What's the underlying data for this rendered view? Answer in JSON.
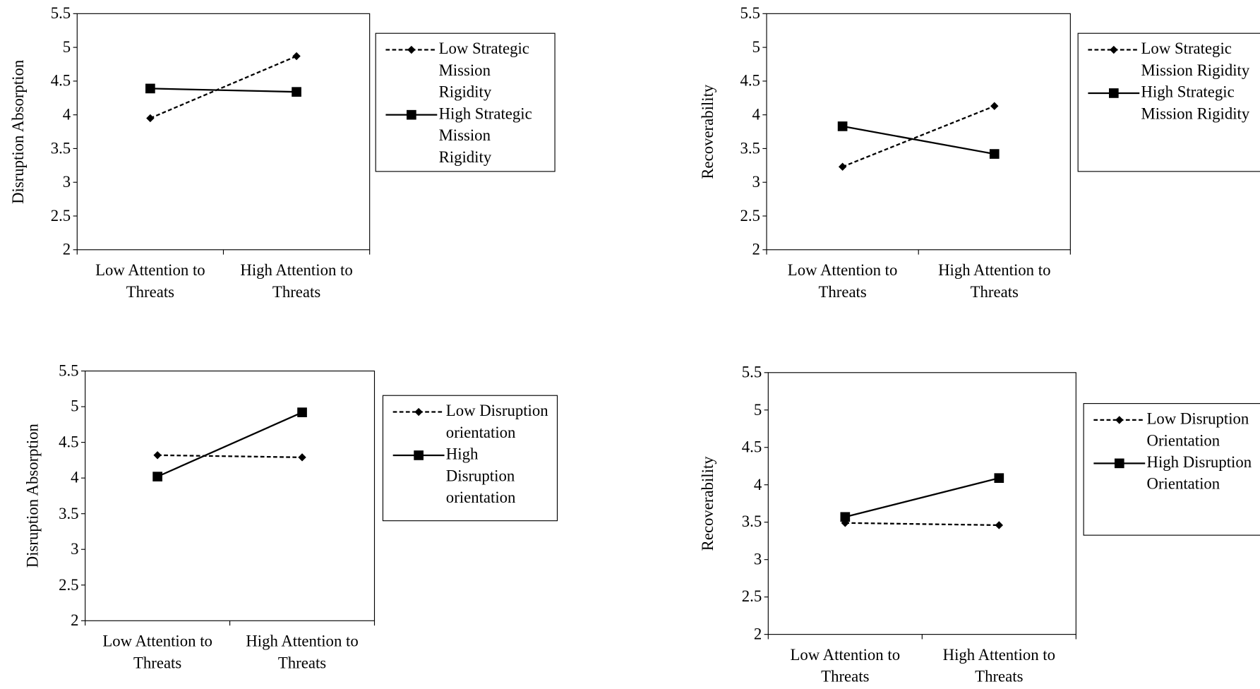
{
  "chart_data": [
    {
      "type": "line",
      "y_label": "Disruption Absorption",
      "categories": [
        "Low Attention to Threats",
        "High Attention to Threats"
      ],
      "ylim": [
        2,
        5.5
      ],
      "yticks": [
        2,
        2.5,
        3,
        3.5,
        4,
        4.5,
        5,
        5.5
      ],
      "series": [
        {
          "name": "Low Strategic Mission Rigidity",
          "color": "#000000",
          "dashed": true,
          "marker": "diamond",
          "values": [
            3.95,
            4.87
          ]
        },
        {
          "name": "High Strategic Mission Rigidity",
          "color": "#000000",
          "dashed": false,
          "marker": "square",
          "values": [
            4.39,
            4.34
          ]
        }
      ]
    },
    {
      "type": "line",
      "y_label": "Recoverability",
      "categories": [
        "Low Attention to Threats",
        "High Attention to Threats"
      ],
      "ylim": [
        2,
        5.5
      ],
      "yticks": [
        2,
        2.5,
        3,
        3.5,
        4,
        4.5,
        5,
        5.5
      ],
      "series": [
        {
          "name": "Low Strategic Mission Rigidity",
          "color": "#000000",
          "dashed": true,
          "marker": "diamond",
          "values": [
            3.23,
            4.13
          ]
        },
        {
          "name": "High Strategic Mission Rigidity",
          "color": "#000000",
          "dashed": false,
          "marker": "square",
          "values": [
            3.83,
            3.42
          ]
        }
      ]
    },
    {
      "type": "line",
      "y_label": "Disruption Absorption",
      "categories": [
        "Low Attention to Threats",
        "High Attention to Threats"
      ],
      "ylim": [
        2,
        5.5
      ],
      "yticks": [
        2,
        2.5,
        3,
        3.5,
        4,
        4.5,
        5,
        5.5
      ],
      "series": [
        {
          "name": "Low Disruption orientation",
          "color": "#000000",
          "dashed": true,
          "marker": "diamond",
          "values": [
            4.32,
            4.29
          ]
        },
        {
          "name": "High Disruption orientation",
          "color": "#000000",
          "dashed": false,
          "marker": "square",
          "values": [
            4.02,
            4.92
          ]
        }
      ]
    },
    {
      "type": "line",
      "y_label": "Recoverability",
      "categories": [
        "Low Attention to Threats",
        "High Attention to Threats"
      ],
      "ylim": [
        2,
        5.5
      ],
      "yticks": [
        2,
        2.5,
        3,
        3.5,
        4,
        4.5,
        5,
        5.5
      ],
      "series": [
        {
          "name": "Low Disruption Orientation",
          "color": "#000000",
          "dashed": true,
          "marker": "diamond",
          "values": [
            3.49,
            3.46
          ]
        },
        {
          "name": "High Disruption Orientation",
          "color": "#000000",
          "dashed": false,
          "marker": "square",
          "values": [
            3.57,
            4.09
          ]
        }
      ]
    }
  ]
}
